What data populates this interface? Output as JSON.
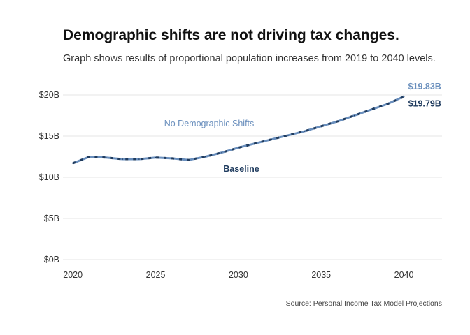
{
  "chart_data": {
    "type": "line",
    "title": "Demographic shifts are not driving tax changes.",
    "subtitle": "Graph shows results of proportional population increases from 2019 to 2040 levels.",
    "source": "Source: Personal Income Tax Model Projections",
    "xlabel": "",
    "ylabel": "",
    "xlim": [
      2019.4,
      2042.3
    ],
    "ylim": [
      0,
      20
    ],
    "x_ticks": [
      2020,
      2025,
      2030,
      2035,
      2040
    ],
    "x_tick_labels": [
      "2020",
      "2025",
      "2030",
      "2035",
      "2040"
    ],
    "y_ticks": [
      0,
      5,
      10,
      15,
      20
    ],
    "y_tick_labels": [
      "$0B",
      "$5B",
      "$10B",
      "$15B",
      "$20B"
    ],
    "grid": "horizontal",
    "x": [
      2020,
      2021,
      2022,
      2023,
      2024,
      2025,
      2026,
      2027,
      2028,
      2029,
      2030,
      2031,
      2032,
      2033,
      2034,
      2035,
      2036,
      2037,
      2038,
      2039,
      2040
    ],
    "series": [
      {
        "name": "No Demographic Shifts",
        "color": "#6a8fbd",
        "style": "solid",
        "values": [
          11.7,
          12.5,
          12.4,
          12.2,
          12.2,
          12.4,
          12.3,
          12.1,
          12.5,
          13.0,
          13.6,
          14.1,
          14.6,
          15.1,
          15.6,
          16.2,
          16.8,
          17.5,
          18.2,
          18.9,
          19.83
        ],
        "end_label": "$19.83B"
      },
      {
        "name": "Baseline",
        "color": "#1f3b5e",
        "style": "dashed",
        "values": [
          11.7,
          12.5,
          12.4,
          12.2,
          12.2,
          12.4,
          12.3,
          12.1,
          12.5,
          13.0,
          13.6,
          14.1,
          14.6,
          15.1,
          15.6,
          16.2,
          16.8,
          17.5,
          18.2,
          18.9,
          19.79
        ],
        "end_label": "$19.79B"
      }
    ]
  },
  "colors": {
    "no_demographic_shifts": "#6a8fbd",
    "baseline": "#1f3b5e",
    "grid": "#e4e4e4"
  }
}
